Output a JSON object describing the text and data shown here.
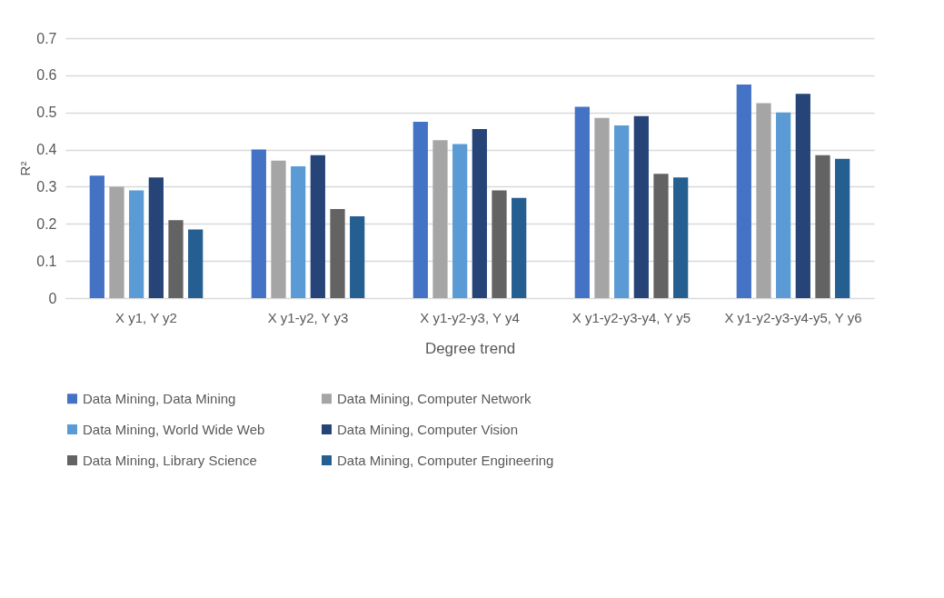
{
  "chart_data": {
    "type": "bar",
    "xlabel": "Degree trend",
    "ylabel": "R²",
    "categories": [
      "X y1, Y y2",
      "X y1-y2, Y y3",
      "X y1-y2-y3, Y y4",
      "X y1-y2-y3-y4, Y y5",
      "X y1-y2-y3-y4-y5, Y y6"
    ],
    "series": [
      {
        "name": "Data Mining, Data Mining",
        "color": "#4472c4",
        "values": [
          0.33,
          0.4,
          0.475,
          0.515,
          0.575
        ]
      },
      {
        "name": "Data Mining, Computer Network",
        "color": "#a5a5a5",
        "values": [
          0.3,
          0.37,
          0.425,
          0.485,
          0.525
        ]
      },
      {
        "name": "Data Mining, World Wide Web",
        "color": "#5b9bd5",
        "values": [
          0.29,
          0.355,
          0.415,
          0.465,
          0.5
        ]
      },
      {
        "name": "Data Mining, Computer Vision",
        "color": "#264478",
        "values": [
          0.325,
          0.385,
          0.455,
          0.49,
          0.55
        ]
      },
      {
        "name": "Data Mining, Library Science",
        "color": "#636363",
        "values": [
          0.21,
          0.24,
          0.29,
          0.335,
          0.385
        ]
      },
      {
        "name": "Data Mining, Computer Engineering",
        "color": "#255e91",
        "values": [
          0.185,
          0.22,
          0.27,
          0.325,
          0.375
        ]
      }
    ],
    "ylim": [
      0,
      0.7
    ],
    "yticks": [
      0,
      0.1,
      0.2,
      0.3,
      0.4,
      0.5,
      0.6,
      0.7
    ],
    "grid": "y",
    "legend": "bottom"
  }
}
